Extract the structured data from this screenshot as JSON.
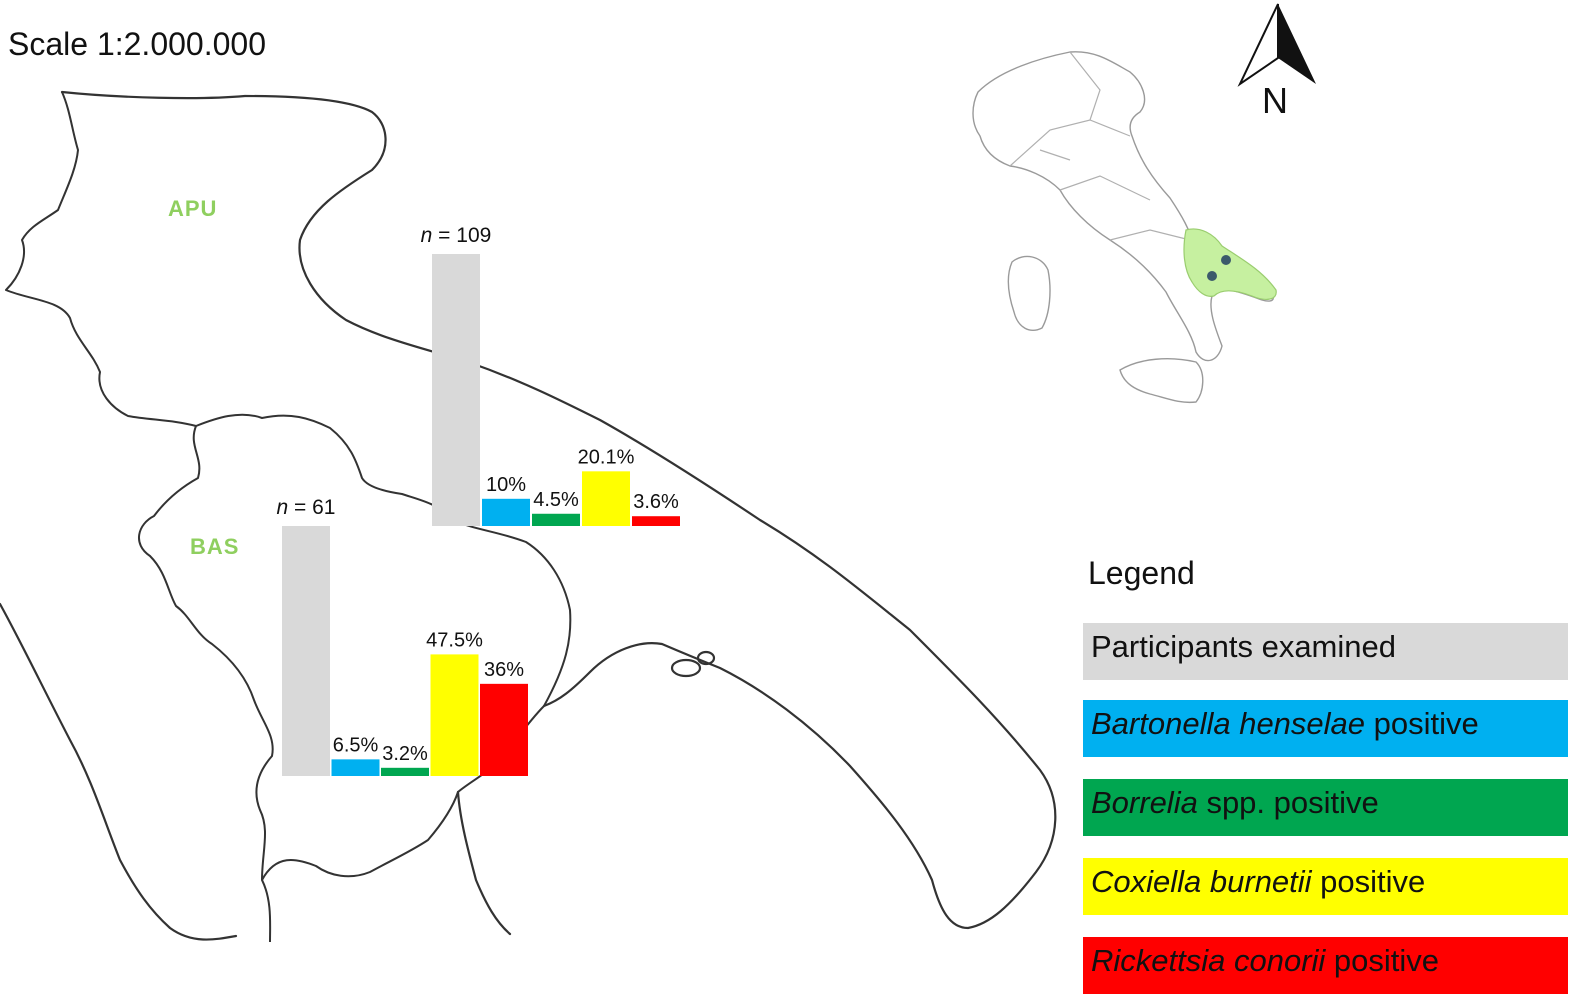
{
  "scale_text": "Scale 1:2.000.000",
  "north_label": "N",
  "regions": {
    "apu": "APU",
    "bas": "BAS"
  },
  "colors": {
    "participants": "#d9d9d9",
    "bartonella": "#00b0f0",
    "borrelia": "#00a650",
    "coxiella": "#ffff00",
    "rickettsia": "#ff0000",
    "region_label": "#8fcf5f",
    "highlight": "#c6f0a0"
  },
  "legend": {
    "title": "Legend",
    "items": [
      {
        "key": "participants",
        "italic": "",
        "plain": "Participants examined"
      },
      {
        "key": "bartonella",
        "italic": "Bartonella henselae",
        "plain": " positive"
      },
      {
        "key": "borrelia",
        "italic": "Borrelia",
        "plain": " spp. positive"
      },
      {
        "key": "coxiella",
        "italic": "Coxiella burnetii",
        "plain": " positive"
      },
      {
        "key": "rickettsia",
        "italic": "Rickettsia conorii",
        "plain": " positive"
      }
    ]
  },
  "chart_data": [
    {
      "type": "bar",
      "region": "APU",
      "n_prefix": "n",
      "n_suffix": " = 109",
      "n": 109,
      "categories": [
        "Participants examined",
        "Bartonella henselae positive",
        "Borrelia spp. positive",
        "Coxiella burnetii positive",
        "Rickettsia conorii positive"
      ],
      "values": [
        100,
        10,
        4.5,
        20.1,
        3.6
      ],
      "labels": [
        "",
        "10%",
        "4.5%",
        "20.1%",
        "3.6%"
      ]
    },
    {
      "type": "bar",
      "region": "BAS",
      "n_prefix": "n",
      "n_suffix": " = 61",
      "n": 61,
      "categories": [
        "Participants examined",
        "Bartonella henselae positive",
        "Borrelia spp. positive",
        "Coxiella burnetii positive",
        "Rickettsia conorii positive"
      ],
      "values": [
        100,
        6.5,
        3.2,
        47.5,
        36
      ],
      "labels": [
        "",
        "6.5%",
        "3.2%",
        "47.5%",
        "36%"
      ]
    }
  ]
}
